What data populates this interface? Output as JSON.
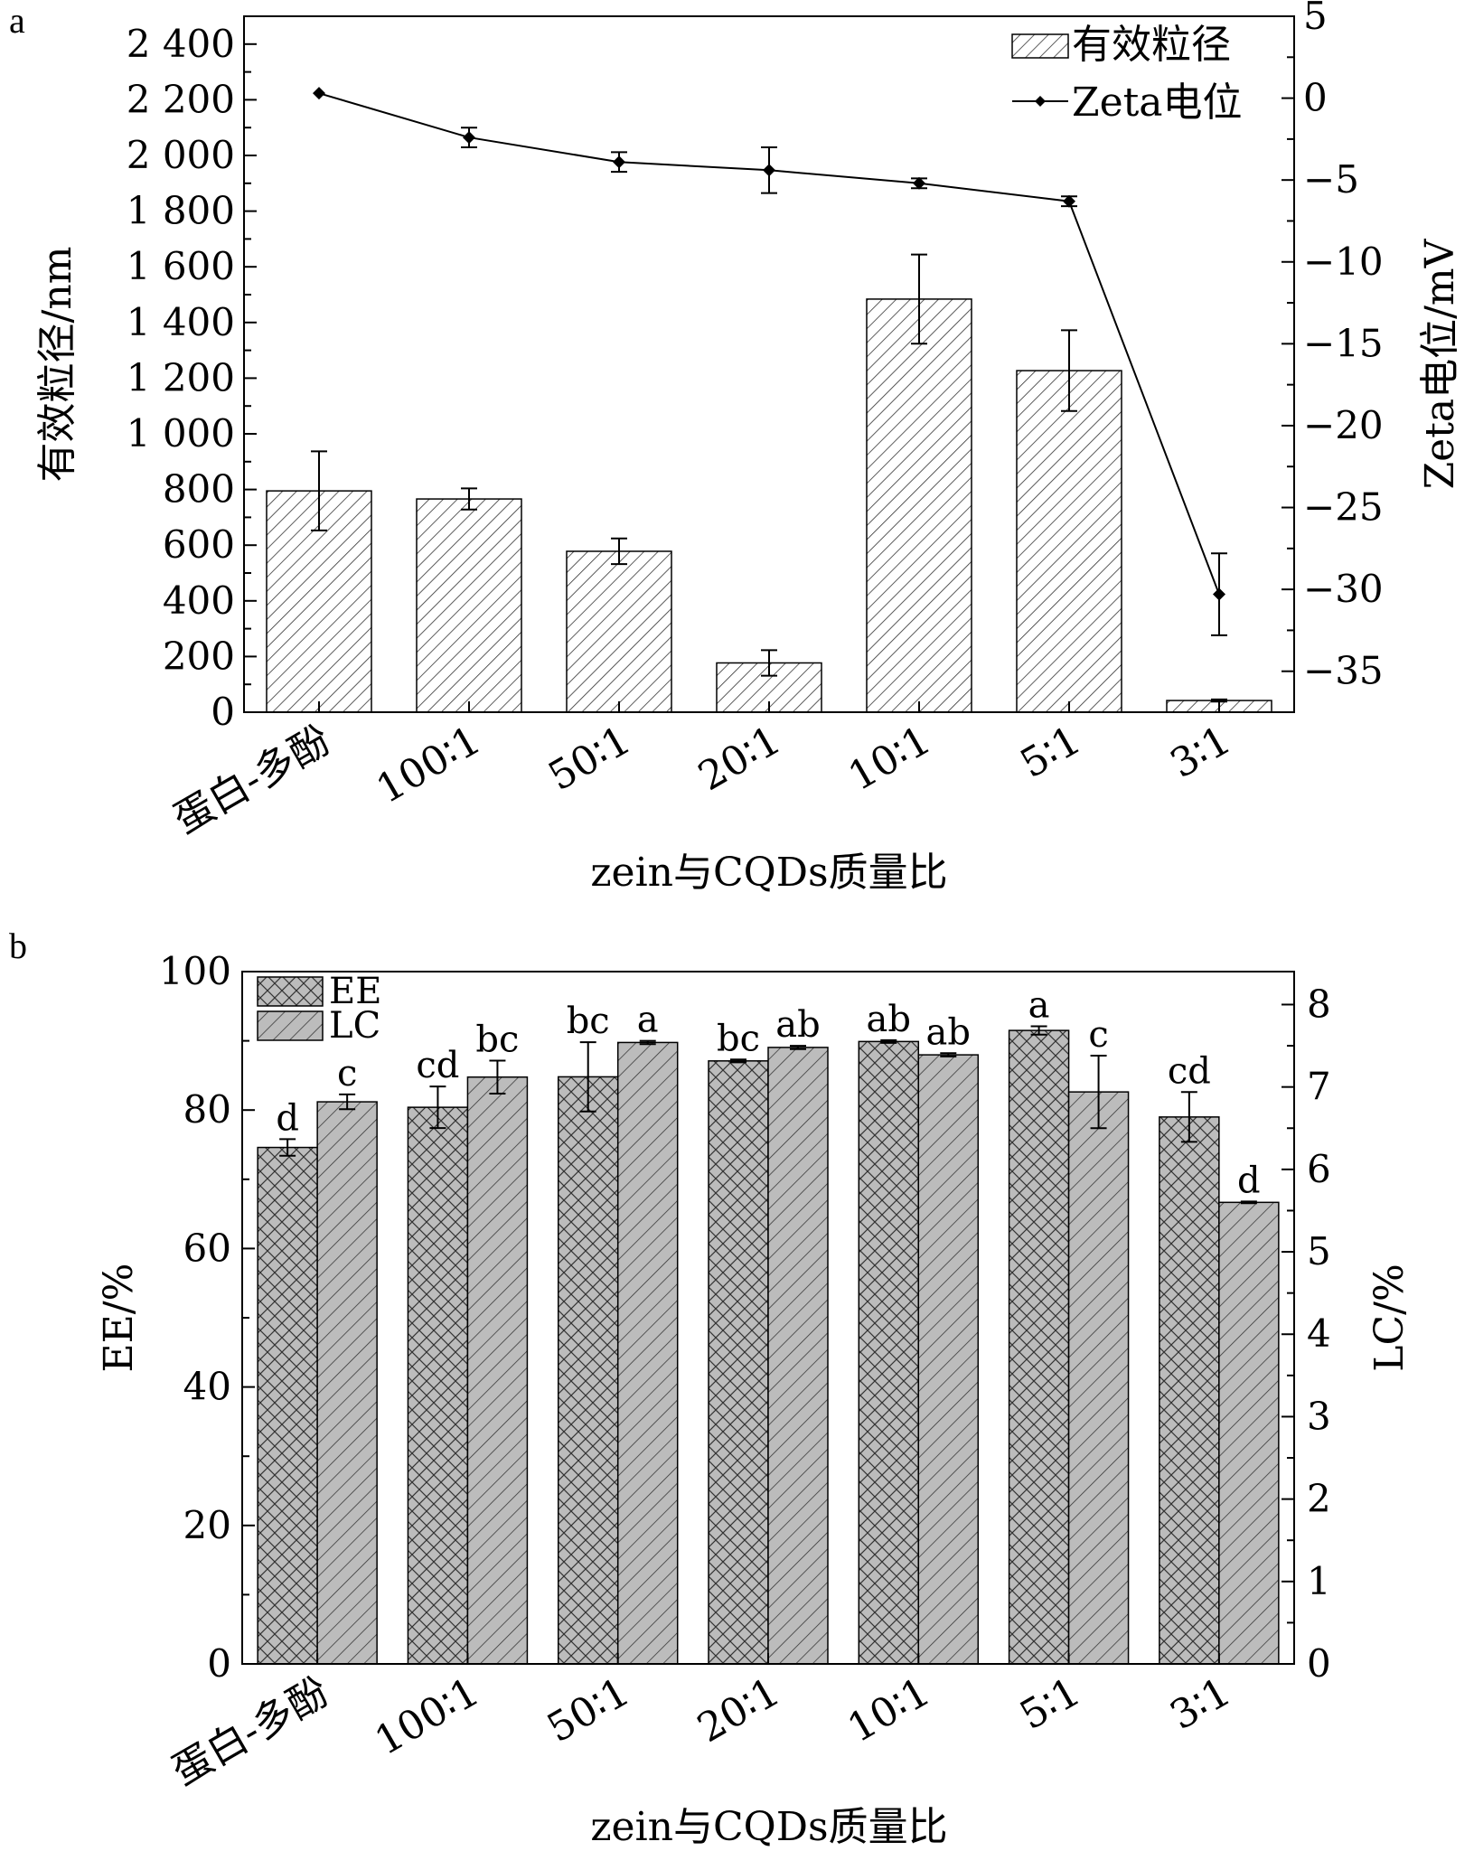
{
  "chart_data": [
    {
      "panel_label": "a",
      "type": "bar",
      "categories": [
        "蛋白-多酚",
        "100∶1",
        "50∶1",
        "20∶1",
        "10∶1",
        "5∶1",
        "3∶1"
      ],
      "xlabel": "zein与CQDs质量比",
      "ylabel": "有效粒径/nm",
      "y2label": "Zeta电位/mV",
      "ylim": [
        0,
        2500
      ],
      "y2lim": [
        -37.5,
        5
      ],
      "yticks": [
        "0",
        "200",
        "400",
        "600",
        "800",
        "1 000",
        "1 200",
        "1 400",
        "1 600",
        "1 800",
        "2 000",
        "2 200",
        "2 400"
      ],
      "y2ticks": [
        "5",
        "0",
        "-5",
        "-10",
        "-15",
        "-20",
        "-25",
        "-30",
        "-35"
      ],
      "legend_position": "top-right",
      "series": [
        {
          "name": "有效粒径",
          "kind": "bar",
          "axis": "left",
          "values": [
            795,
            766,
            578,
            177,
            1484,
            1227,
            42
          ],
          "errors": [
            142,
            38,
            46,
            46,
            160,
            145,
            4
          ]
        },
        {
          "name": "Zeta电位",
          "kind": "line",
          "axis": "right",
          "values": [
            0.3,
            -2.4,
            -3.9,
            -4.4,
            -5.2,
            -6.3,
            -30.3
          ],
          "errors": [
            0.1,
            0.6,
            0.6,
            1.4,
            0.3,
            0.3,
            2.5
          ]
        }
      ]
    },
    {
      "panel_label": "b",
      "type": "bar",
      "categories": [
        "蛋白-多酚",
        "100∶1",
        "50∶1",
        "20∶1",
        "10∶1",
        "5∶1",
        "3∶1"
      ],
      "xlabel": "zein与CQDs质量比",
      "ylabel": "EE/%",
      "y2label": "LC/%",
      "ylim": [
        0,
        100
      ],
      "y2lim": [
        0,
        8.4
      ],
      "yticks": [
        "0",
        "20",
        "40",
        "60",
        "80",
        "100"
      ],
      "y2ticks": [
        "0",
        "1",
        "2",
        "3",
        "4",
        "5",
        "6",
        "7",
        "8"
      ],
      "legend_position": "top-left",
      "series": [
        {
          "name": "EE",
          "kind": "bar",
          "axis": "left",
          "values": [
            74.6,
            80.4,
            84.8,
            87.1,
            89.9,
            91.5,
            79.0
          ],
          "errors": [
            1.2,
            3.0,
            5.0,
            0.2,
            0.2,
            0.6,
            3.6
          ],
          "letters": [
            "d",
            "cd",
            "bc",
            "bc",
            "ab",
            "a",
            "cd"
          ]
        },
        {
          "name": "LC",
          "kind": "bar",
          "axis": "right",
          "values": [
            6.82,
            7.12,
            7.54,
            7.48,
            7.39,
            6.94,
            5.6
          ],
          "errors": [
            0.09,
            0.2,
            0.02,
            0.02,
            0.02,
            0.44,
            0.01
          ],
          "letters": [
            "c",
            "bc",
            "a",
            "ab",
            "ab",
            "c",
            "d"
          ]
        }
      ]
    }
  ]
}
